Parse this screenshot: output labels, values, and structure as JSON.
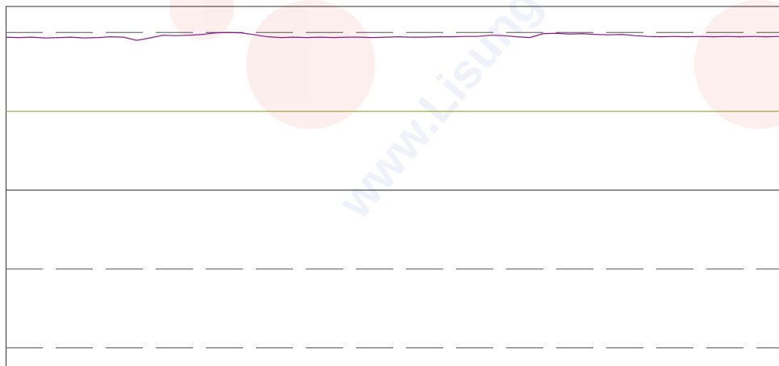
{
  "chart_data": {
    "type": "line",
    "watermark": "www.Lisung",
    "x": [
      0,
      1,
      2,
      3,
      4,
      5,
      6,
      7,
      8,
      9,
      10,
      11,
      12,
      13,
      14,
      15,
      16,
      17,
      18,
      19,
      20,
      21,
      22,
      23,
      24,
      25,
      26,
      27,
      28,
      29,
      30,
      31,
      32,
      33,
      34,
      35,
      36,
      37,
      38,
      39,
      40,
      41,
      42,
      43,
      44,
      45,
      46,
      47,
      48,
      49,
      50,
      51,
      52,
      53,
      54,
      55,
      56,
      57,
      58,
      59
    ],
    "xlim": [
      0,
      59
    ],
    "ylim": [
      -2.23,
      2.33
    ],
    "reference_lines": [
      {
        "value": 2,
        "style": "dashed",
        "color": "#555555"
      },
      {
        "value": 1,
        "style": "solid",
        "color": "#8a9a10"
      },
      {
        "value": 0,
        "style": "solid",
        "color": "#222222"
      },
      {
        "value": -1,
        "style": "dashed",
        "color": "#555555"
      },
      {
        "value": -2,
        "style": "dashed",
        "color": "#555555"
      }
    ],
    "series": [
      {
        "color": "#8b1a8b",
        "values": [
          1.94,
          1.935,
          1.94,
          1.93,
          1.935,
          1.94,
          1.93,
          1.935,
          1.945,
          1.94,
          1.9,
          1.93,
          1.965,
          1.96,
          1.965,
          1.975,
          1.995,
          2.0,
          1.995,
          1.97,
          1.945,
          1.935,
          1.94,
          1.935,
          1.94,
          1.935,
          1.94,
          1.94,
          1.935,
          1.94,
          1.945,
          1.94,
          1.94,
          1.945,
          1.945,
          1.95,
          1.95,
          1.965,
          1.96,
          1.945,
          1.935,
          1.985,
          1.99,
          1.98,
          1.985,
          1.975,
          1.97,
          1.975,
          1.96,
          1.95,
          1.945,
          1.95,
          1.945,
          1.95,
          1.945,
          1.95,
          1.945,
          1.95,
          1.945,
          1.95
        ]
      }
    ]
  }
}
